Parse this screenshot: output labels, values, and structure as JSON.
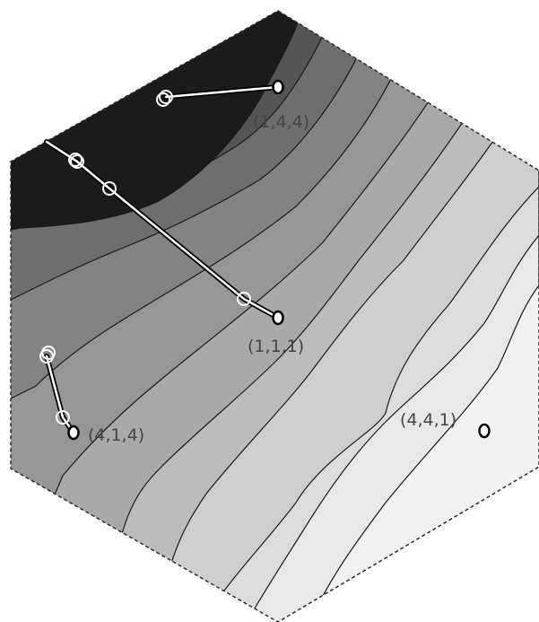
{
  "figure": {
    "colors": {
      "background": "#ffffff",
      "contour_line": "#1a1a1a",
      "path_stroke": "#000000",
      "path_highlight": "#ffffff",
      "label": "#444444",
      "bands": [
        "#1b1b1b",
        "#555555",
        "#6e6e6e",
        "#838383",
        "#969696",
        "#a9a9a9",
        "#bcbcbc",
        "#cecece",
        "#dcdcdc",
        "#e8e8e8",
        "#f1f1f1"
      ]
    },
    "points": [
      {
        "id": "p144",
        "label": "(1,4,4)"
      },
      {
        "id": "p111",
        "label": "(1,1,1)"
      },
      {
        "id": "p414",
        "label": "(4,1,4)"
      },
      {
        "id": "p441",
        "label": "(4,4,1)"
      }
    ]
  }
}
